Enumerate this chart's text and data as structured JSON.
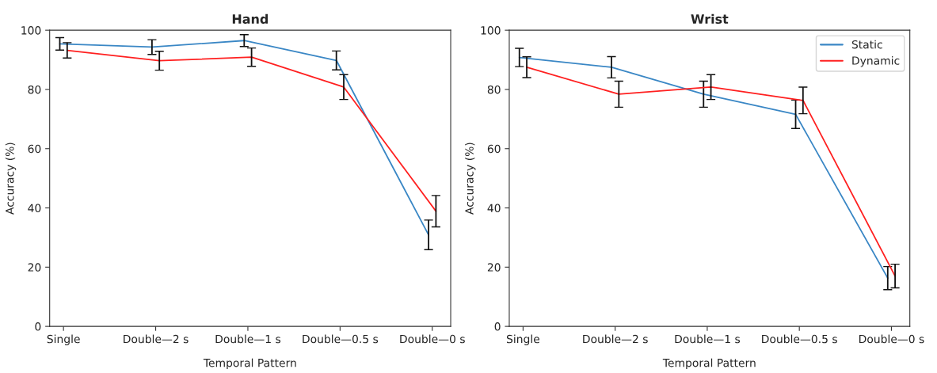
{
  "chart_data": [
    {
      "type": "line",
      "title": "Hand",
      "xlabel": "Temporal Pattern",
      "ylabel": "Accuracy (%)",
      "categories": [
        "Single",
        "Double—2 s",
        "Double—1 s",
        "Double—0.5 s",
        "Double—0 s"
      ],
      "ylim": [
        0,
        100
      ],
      "yticks": [
        0,
        20,
        40,
        60,
        80,
        100
      ],
      "grid": false,
      "marker": "none",
      "line_style": "solid",
      "series": [
        {
          "color": "#3a87c5",
          "values": [
            95.4,
            94.3,
            96.5,
            89.8,
            30.9
          ],
          "errors": [
            2.1,
            2.5,
            2.0,
            3.2,
            5.0
          ]
        },
        {
          "color": "#ff2020",
          "values": [
            93.2,
            89.7,
            90.9,
            80.8,
            38.9
          ],
          "errors": [
            2.6,
            3.2,
            3.1,
            4.2,
            5.3
          ]
        }
      ]
    },
    {
      "type": "line",
      "title": "Wrist",
      "xlabel": "Temporal Pattern",
      "ylabel": "Accuracy (%)",
      "categories": [
        "Single",
        "Double—2 s",
        "Double—1 s",
        "Double—0.5 s",
        "Double—0 s"
      ],
      "ylim": [
        0,
        100
      ],
      "yticks": [
        0,
        20,
        40,
        60,
        80,
        100
      ],
      "grid": false,
      "marker": "none",
      "line_style": "solid",
      "legend": "top right",
      "series": [
        {
          "name": "Static",
          "color": "#3a87c5",
          "values": [
            90.8,
            87.5,
            78.4,
            71.6,
            16.3
          ],
          "errors": [
            3.1,
            3.6,
            4.4,
            4.8,
            3.9
          ]
        },
        {
          "name": "Dynamic",
          "color": "#ff2020",
          "values": [
            87.5,
            78.4,
            80.8,
            76.3,
            17.0
          ],
          "errors": [
            3.5,
            4.4,
            4.2,
            4.5,
            4.0
          ]
        }
      ]
    }
  ]
}
